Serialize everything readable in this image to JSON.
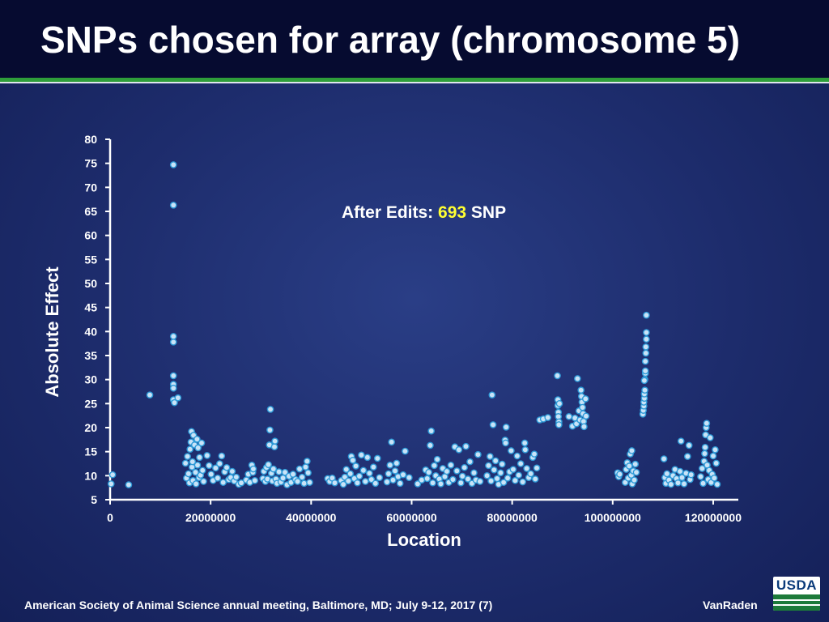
{
  "slide": {
    "title": "SNPs chosen for array (chromosome 5)",
    "footer": "American Society of Animal Science annual meeting, Baltimore, MD; July  9-12, 2017 (7)",
    "author": "VanRaden",
    "logo_text": "USDA"
  },
  "colors": {
    "point_fill": "#c9e3f8",
    "point_stroke": "#2f9bd8",
    "highlight": "#ffff33",
    "title_bar": "#060b30",
    "accent_green": "#2e9e3a"
  },
  "chart_data": {
    "type": "scatter",
    "xlabel": "Location",
    "ylabel": "Absolute Effect",
    "xlim": [
      0,
      125000000
    ],
    "ylim": [
      5,
      80
    ],
    "xticks": [
      0,
      20000000,
      40000000,
      60000000,
      80000000,
      100000000,
      120000000
    ],
    "yticks": [
      5,
      10,
      15,
      20,
      25,
      30,
      35,
      40,
      45,
      50,
      55,
      60,
      65,
      70,
      75,
      80
    ],
    "grid": false,
    "annotation": {
      "prefix": "After Edits: ",
      "count": "693",
      "suffix": " SNP"
    },
    "points": [
      [
        200000,
        8.3
      ],
      [
        500000,
        10.2
      ],
      [
        3700000,
        8.1
      ],
      [
        7900000,
        26.8
      ],
      [
        12600000,
        74.7
      ],
      [
        12600000,
        66.3
      ],
      [
        12600000,
        39.0
      ],
      [
        12600000,
        37.8
      ],
      [
        12600000,
        30.8
      ],
      [
        12600000,
        29.0
      ],
      [
        12600000,
        28.2
      ],
      [
        12600000,
        25.8
      ],
      [
        12800000,
        25.2
      ],
      [
        13500000,
        26.2
      ],
      [
        15000000,
        12.6
      ],
      [
        15200000,
        9.5
      ],
      [
        15400000,
        14.0
      ],
      [
        15600000,
        10.4
      ],
      [
        15800000,
        8.5
      ],
      [
        15900000,
        15.5
      ],
      [
        16100000,
        17.0
      ],
      [
        16200000,
        19.2
      ],
      [
        16300000,
        11.8
      ],
      [
        16400000,
        12.9
      ],
      [
        16500000,
        9.0
      ],
      [
        16600000,
        18.4
      ],
      [
        16800000,
        16.4
      ],
      [
        17000000,
        10.7
      ],
      [
        17100000,
        8.3
      ],
      [
        17300000,
        17.6
      ],
      [
        17400000,
        12.2
      ],
      [
        17500000,
        15.8
      ],
      [
        17700000,
        9.6
      ],
      [
        17800000,
        13.8
      ],
      [
        18000000,
        10.1
      ],
      [
        18200000,
        16.8
      ],
      [
        18400000,
        11.1
      ],
      [
        18600000,
        8.8
      ],
      [
        19300000,
        14.2
      ],
      [
        19700000,
        12.1
      ],
      [
        20100000,
        10.3
      ],
      [
        20500000,
        9.0
      ],
      [
        21000000,
        11.6
      ],
      [
        21400000,
        9.5
      ],
      [
        21800000,
        12.5
      ],
      [
        22200000,
        14.1
      ],
      [
        22500000,
        8.6
      ],
      [
        22800000,
        10.8
      ],
      [
        23200000,
        11.7
      ],
      [
        23600000,
        9.2
      ],
      [
        24000000,
        9.6
      ],
      [
        24300000,
        10.9
      ],
      [
        24700000,
        8.9
      ],
      [
        25100000,
        9.7
      ],
      [
        25600000,
        8.2
      ],
      [
        26100000,
        8.5
      ],
      [
        27100000,
        9.1
      ],
      [
        27500000,
        10.3
      ],
      [
        27800000,
        8.6
      ],
      [
        28200000,
        12.2
      ],
      [
        28400000,
        10.7
      ],
      [
        28500000,
        11.4
      ],
      [
        28800000,
        9.0
      ],
      [
        30400000,
        9.4
      ],
      [
        30600000,
        10.9
      ],
      [
        30900000,
        8.8
      ],
      [
        31100000,
        11.7
      ],
      [
        31300000,
        9.3
      ],
      [
        31500000,
        12.3
      ],
      [
        31700000,
        16.4
      ],
      [
        31800000,
        19.5
      ],
      [
        31900000,
        23.8
      ],
      [
        32100000,
        10.5
      ],
      [
        32300000,
        8.9
      ],
      [
        32500000,
        11.4
      ],
      [
        32700000,
        16.0
      ],
      [
        32800000,
        17.2
      ],
      [
        33000000,
        9.3
      ],
      [
        33200000,
        8.4
      ],
      [
        33600000,
        10.8
      ],
      [
        34000000,
        8.7
      ],
      [
        34400000,
        9.5
      ],
      [
        34800000,
        10.7
      ],
      [
        35200000,
        8.1
      ],
      [
        35600000,
        9.9
      ],
      [
        36000000,
        8.6
      ],
      [
        36400000,
        10.3
      ],
      [
        36900000,
        9.2
      ],
      [
        37300000,
        8.8
      ],
      [
        37700000,
        11.4
      ],
      [
        38200000,
        9.7
      ],
      [
        38600000,
        8.4
      ],
      [
        38900000,
        11.8
      ],
      [
        39200000,
        13.0
      ],
      [
        39400000,
        10.6
      ],
      [
        39700000,
        8.6
      ],
      [
        43300000,
        9.4
      ],
      [
        43700000,
        8.8
      ],
      [
        44200000,
        9.5
      ],
      [
        44700000,
        8.5
      ],
      [
        46000000,
        9.0
      ],
      [
        46400000,
        8.2
      ],
      [
        46700000,
        9.7
      ],
      [
        47000000,
        11.3
      ],
      [
        47400000,
        8.9
      ],
      [
        47800000,
        10.4
      ],
      [
        48000000,
        14.0
      ],
      [
        48300000,
        13.2
      ],
      [
        48600000,
        9.4
      ],
      [
        48900000,
        12.0
      ],
      [
        49200000,
        8.5
      ],
      [
        49600000,
        9.9
      ],
      [
        50000000,
        14.3
      ],
      [
        50400000,
        11.1
      ],
      [
        50800000,
        8.8
      ],
      [
        51200000,
        13.8
      ],
      [
        51600000,
        10.5
      ],
      [
        52000000,
        9.2
      ],
      [
        52400000,
        11.8
      ],
      [
        52800000,
        8.4
      ],
      [
        53200000,
        13.6
      ],
      [
        53600000,
        9.6
      ],
      [
        55100000,
        8.7
      ],
      [
        55400000,
        10.4
      ],
      [
        55700000,
        12.2
      ],
      [
        56000000,
        17.0
      ],
      [
        56300000,
        9.1
      ],
      [
        56700000,
        11.0
      ],
      [
        57000000,
        12.6
      ],
      [
        57300000,
        9.8
      ],
      [
        57700000,
        8.4
      ],
      [
        58300000,
        10.2
      ],
      [
        58700000,
        15.1
      ],
      [
        59500000,
        9.6
      ],
      [
        61200000,
        8.3
      ],
      [
        62000000,
        9.1
      ],
      [
        62800000,
        11.2
      ],
      [
        63100000,
        9.4
      ],
      [
        63400000,
        10.7
      ],
      [
        63700000,
        16.3
      ],
      [
        63900000,
        19.3
      ],
      [
        64200000,
        8.5
      ],
      [
        64500000,
        12.1
      ],
      [
        64800000,
        10.0
      ],
      [
        65100000,
        13.4
      ],
      [
        65500000,
        9.3
      ],
      [
        65800000,
        8.3
      ],
      [
        66200000,
        11.5
      ],
      [
        66600000,
        9.8
      ],
      [
        67000000,
        10.9
      ],
      [
        67400000,
        8.6
      ],
      [
        67800000,
        12.2
      ],
      [
        68200000,
        9.2
      ],
      [
        68600000,
        16.0
      ],
      [
        69000000,
        11.0
      ],
      [
        69400000,
        15.4
      ],
      [
        69800000,
        8.5
      ],
      [
        70100000,
        9.9
      ],
      [
        70500000,
        11.7
      ],
      [
        70800000,
        16.1
      ],
      [
        71200000,
        9.3
      ],
      [
        71600000,
        12.9
      ],
      [
        72000000,
        8.4
      ],
      [
        72400000,
        10.6
      ],
      [
        72800000,
        9.1
      ],
      [
        73200000,
        14.4
      ],
      [
        73600000,
        8.8
      ],
      [
        75000000,
        10.0
      ],
      [
        75300000,
        12.1
      ],
      [
        75600000,
        14.0
      ],
      [
        75800000,
        8.9
      ],
      [
        76000000,
        26.8
      ],
      [
        76200000,
        20.6
      ],
      [
        76400000,
        11.2
      ],
      [
        76700000,
        13.1
      ],
      [
        77000000,
        9.4
      ],
      [
        77300000,
        8.2
      ],
      [
        77700000,
        10.6
      ],
      [
        78000000,
        12.4
      ],
      [
        78300000,
        8.6
      ],
      [
        78600000,
        17.4
      ],
      [
        78700000,
        16.8
      ],
      [
        78800000,
        20.1
      ],
      [
        79100000,
        9.5
      ],
      [
        79500000,
        10.8
      ],
      [
        79800000,
        15.2
      ],
      [
        80200000,
        11.3
      ],
      [
        80600000,
        9.0
      ],
      [
        81000000,
        14.1
      ],
      [
        81300000,
        10.1
      ],
      [
        81700000,
        12.5
      ],
      [
        82100000,
        8.7
      ],
      [
        82500000,
        16.8
      ],
      [
        82600000,
        15.4
      ],
      [
        82900000,
        11.5
      ],
      [
        83300000,
        9.6
      ],
      [
        83700000,
        10.4
      ],
      [
        84100000,
        13.8
      ],
      [
        84400000,
        14.5
      ],
      [
        84600000,
        9.3
      ],
      [
        84900000,
        11.6
      ],
      [
        85500000,
        21.6
      ],
      [
        86200000,
        21.8
      ],
      [
        87100000,
        22.1
      ],
      [
        89000000,
        30.8
      ],
      [
        89100000,
        25.8
      ],
      [
        89100000,
        24.6
      ],
      [
        89200000,
        23.2
      ],
      [
        89200000,
        22.3
      ],
      [
        89300000,
        21.2
      ],
      [
        89300000,
        20.6
      ],
      [
        89400000,
        25.0
      ],
      [
        91300000,
        22.3
      ],
      [
        92000000,
        20.3
      ],
      [
        92500000,
        22.0
      ],
      [
        92800000,
        20.8
      ],
      [
        93000000,
        30.2
      ],
      [
        93300000,
        23.5
      ],
      [
        93500000,
        21.6
      ],
      [
        93700000,
        27.8
      ],
      [
        93800000,
        26.5
      ],
      [
        93900000,
        25.3
      ],
      [
        94000000,
        24.2
      ],
      [
        94100000,
        22.9
      ],
      [
        94200000,
        21.3
      ],
      [
        94300000,
        20.2
      ],
      [
        94600000,
        26.0
      ],
      [
        94700000,
        22.4
      ],
      [
        101000000,
        10.6
      ],
      [
        101200000,
        9.8
      ],
      [
        101400000,
        10.3
      ],
      [
        102500000,
        8.6
      ],
      [
        102700000,
        11.3
      ],
      [
        102900000,
        12.7
      ],
      [
        103100000,
        9.5
      ],
      [
        103300000,
        12.0
      ],
      [
        103500000,
        14.5
      ],
      [
        103700000,
        10.1
      ],
      [
        103900000,
        8.3
      ],
      [
        104100000,
        11.0
      ],
      [
        104300000,
        9.1
      ],
      [
        104500000,
        12.4
      ],
      [
        104700000,
        10.7
      ],
      [
        103800000,
        15.2
      ],
      [
        106000000,
        22.8
      ],
      [
        106100000,
        23.6
      ],
      [
        106200000,
        24.5
      ],
      [
        106200000,
        25.3
      ],
      [
        106300000,
        26.1
      ],
      [
        106300000,
        27.0
      ],
      [
        106400000,
        27.8
      ],
      [
        106400000,
        30.0
      ],
      [
        106500000,
        31.3
      ],
      [
        106500000,
        33.8
      ],
      [
        106600000,
        35.5
      ],
      [
        106600000,
        36.8
      ],
      [
        106700000,
        38.4
      ],
      [
        106700000,
        39.8
      ],
      [
        106700000,
        43.4
      ],
      [
        106500000,
        31.8
      ],
      [
        106300000,
        29.8
      ],
      [
        110200000,
        13.5
      ],
      [
        110400000,
        9.6
      ],
      [
        110600000,
        8.4
      ],
      [
        110800000,
        10.4
      ],
      [
        111200000,
        9.1
      ],
      [
        111600000,
        8.2
      ],
      [
        112000000,
        10.0
      ],
      [
        112400000,
        11.3
      ],
      [
        112700000,
        9.4
      ],
      [
        113000000,
        8.5
      ],
      [
        113400000,
        10.9
      ],
      [
        113600000,
        17.2
      ],
      [
        113800000,
        9.6
      ],
      [
        114200000,
        8.3
      ],
      [
        114600000,
        10.5
      ],
      [
        114900000,
        14.0
      ],
      [
        115200000,
        16.3
      ],
      [
        115400000,
        9.2
      ],
      [
        115600000,
        10.2
      ],
      [
        117500000,
        9.8
      ],
      [
        117800000,
        11.5
      ],
      [
        118000000,
        8.4
      ],
      [
        118200000,
        13.0
      ],
      [
        118300000,
        14.6
      ],
      [
        118400000,
        15.9
      ],
      [
        118500000,
        18.5
      ],
      [
        118600000,
        20.0
      ],
      [
        118700000,
        20.9
      ],
      [
        118800000,
        12.2
      ],
      [
        119000000,
        9.2
      ],
      [
        119200000,
        11.1
      ],
      [
        119400000,
        17.9
      ],
      [
        119600000,
        8.6
      ],
      [
        119800000,
        10.3
      ],
      [
        120000000,
        14.1
      ],
      [
        120200000,
        9.5
      ],
      [
        120400000,
        15.4
      ],
      [
        120600000,
        12.6
      ],
      [
        120800000,
        8.2
      ]
    ]
  }
}
